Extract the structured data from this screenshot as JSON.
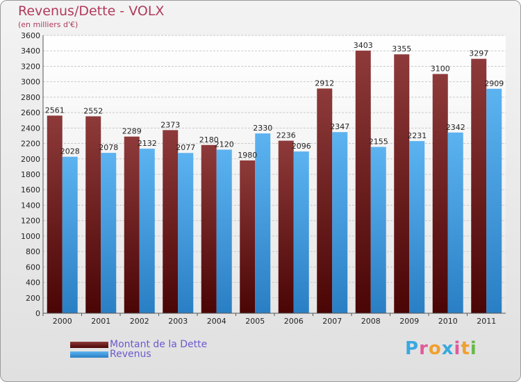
{
  "chart_data": {
    "type": "bar",
    "title": "Revenus/Dette - VOLX",
    "subtitle": "(en milliers d'€)",
    "categories": [
      "2000",
      "2001",
      "2002",
      "2003",
      "2004",
      "2005",
      "2006",
      "2007",
      "2008",
      "2009",
      "2010",
      "2011"
    ],
    "series": [
      {
        "name": "Montant de la Dette",
        "color": "#6b1a1a",
        "values": [
          2561,
          2552,
          2289,
          2373,
          2180,
          1980,
          2236,
          2912,
          3403,
          3355,
          3100,
          3297
        ]
      },
      {
        "name": "Revenus",
        "color": "#3d9be0",
        "values": [
          2028,
          2078,
          2132,
          2077,
          2120,
          2330,
          2096,
          2347,
          2155,
          2231,
          2342,
          2909
        ]
      }
    ],
    "ylim": [
      0,
      3600
    ],
    "ytick_step": 200,
    "grid": true,
    "legend": "bottom-left"
  },
  "logo": {
    "text": "Proxiti"
  }
}
